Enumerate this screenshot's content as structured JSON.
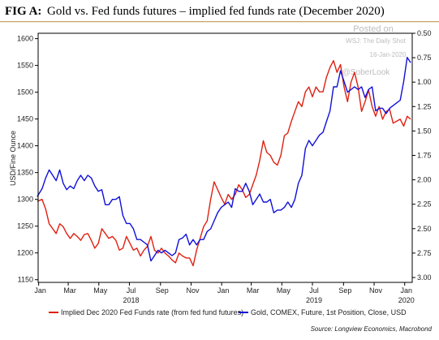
{
  "title": {
    "prefix": "FIG A:",
    "text": "Gold vs. Fed funds futures – implied fed funds rate (December 2020)"
  },
  "watermark": {
    "line1": "Posted on",
    "line2": "WSJ: The Daily Shot",
    "line3": "16-Jan-2020",
    "line4": "@SoberLook"
  },
  "source": "Source: Longview Economics, Macrobond",
  "colors": {
    "gold": "#1010d8",
    "fedfunds": "#e02010",
    "frame": "#000000"
  },
  "chart_data": {
    "type": "line",
    "ylabel": "USD/Fine Ounce",
    "x_tick_labels": [
      "Jan",
      "Mar",
      "May",
      "Jul",
      "Sep",
      "Nov",
      "Jan",
      "Mar",
      "May",
      "Jul",
      "Sep",
      "Nov",
      "Jan"
    ],
    "year_labels": [
      "2018",
      "2019",
      "2020"
    ],
    "y_left": {
      "lim": [
        1145,
        1610
      ],
      "ticks": [
        "1600",
        "1550",
        "1500",
        "1450",
        "1400",
        "1350",
        "1300",
        "1250",
        "1200",
        "1150"
      ]
    },
    "y_right": {
      "lim": [
        0.5,
        3.05
      ],
      "inverted": true,
      "ticks": [
        "0.50",
        "0.75",
        "1.00",
        "1.25",
        "1.50",
        "1.75",
        "2.00",
        "2.25",
        "2.50",
        "2.75",
        "3.00"
      ]
    },
    "series": [
      {
        "name": "Implied Dec 2020 Fed Funds rate (from fed fund futures)",
        "color": "#e02010",
        "axis": "right",
        "x": [
          "2017-12-29",
          "2018-01-08",
          "2018-01-15",
          "2018-01-22",
          "2018-01-29",
          "2018-02-05",
          "2018-02-12",
          "2018-02-19",
          "2018-02-26",
          "2018-03-05",
          "2018-03-12",
          "2018-03-19",
          "2018-03-26",
          "2018-04-02",
          "2018-04-09",
          "2018-04-16",
          "2018-04-23",
          "2018-04-30",
          "2018-05-07",
          "2018-05-14",
          "2018-05-21",
          "2018-05-28",
          "2018-06-04",
          "2018-06-11",
          "2018-06-18",
          "2018-06-25",
          "2018-07-02",
          "2018-07-09",
          "2018-07-16",
          "2018-07-23",
          "2018-07-30",
          "2018-08-06",
          "2018-08-13",
          "2018-08-20",
          "2018-08-27",
          "2018-09-03",
          "2018-09-10",
          "2018-09-17",
          "2018-09-24",
          "2018-10-01",
          "2018-10-08",
          "2018-10-15",
          "2018-10-22",
          "2018-10-29",
          "2018-11-05",
          "2018-11-12",
          "2018-11-19",
          "2018-11-26",
          "2018-12-03",
          "2018-12-10",
          "2018-12-17",
          "2018-12-24",
          "2018-12-31",
          "2019-01-07",
          "2019-01-14",
          "2019-01-21",
          "2019-01-28",
          "2019-02-04",
          "2019-02-11",
          "2019-02-18",
          "2019-02-25",
          "2019-03-04",
          "2019-03-11",
          "2019-03-18",
          "2019-03-25",
          "2019-04-01",
          "2019-04-08",
          "2019-04-15",
          "2019-04-22",
          "2019-04-29",
          "2019-05-06",
          "2019-05-13",
          "2019-05-20",
          "2019-05-27",
          "2019-06-03",
          "2019-06-10",
          "2019-06-17",
          "2019-06-24",
          "2019-07-01",
          "2019-07-08",
          "2019-07-15",
          "2019-07-22",
          "2019-07-29",
          "2019-08-05",
          "2019-08-12",
          "2019-08-19",
          "2019-08-26",
          "2019-09-02",
          "2019-09-09",
          "2019-09-16",
          "2019-09-23",
          "2019-09-30",
          "2019-10-07",
          "2019-10-14",
          "2019-10-21",
          "2019-10-28",
          "2019-11-04",
          "2019-11-11",
          "2019-11-18",
          "2019-11-25",
          "2019-12-02",
          "2019-12-09",
          "2019-12-16",
          "2019-12-23",
          "2019-12-30",
          "2020-01-06",
          "2020-01-13"
        ],
        "values": [
          2.22,
          2.2,
          2.3,
          2.45,
          2.5,
          2.55,
          2.45,
          2.48,
          2.55,
          2.6,
          2.55,
          2.58,
          2.62,
          2.56,
          2.55,
          2.62,
          2.7,
          2.65,
          2.5,
          2.55,
          2.6,
          2.58,
          2.62,
          2.72,
          2.7,
          2.58,
          2.65,
          2.72,
          2.7,
          2.78,
          2.72,
          2.68,
          2.58,
          2.72,
          2.75,
          2.7,
          2.75,
          2.78,
          2.82,
          2.85,
          2.75,
          2.78,
          2.8,
          2.8,
          2.88,
          2.72,
          2.6,
          2.48,
          2.42,
          2.2,
          2.02,
          2.1,
          2.18,
          2.25,
          2.15,
          2.2,
          2.15,
          2.05,
          2.1,
          2.18,
          2.15,
          2.05,
          1.95,
          1.8,
          1.6,
          1.72,
          1.75,
          1.82,
          1.85,
          1.75,
          1.55,
          1.52,
          1.4,
          1.3,
          1.2,
          1.25,
          1.1,
          1.05,
          1.15,
          1.05,
          1.1,
          1.1,
          0.95,
          0.85,
          0.78,
          0.9,
          0.82,
          1.05,
          1.2,
          1.0,
          0.9,
          1.05,
          1.3,
          1.2,
          1.08,
          1.25,
          1.35,
          1.25,
          1.38,
          1.3,
          1.28,
          1.42,
          1.4,
          1.38,
          1.45,
          1.35,
          1.38
        ]
      },
      {
        "name": "Gold, COMEX, Future, 1st Position, Close, USD",
        "color": "#1010d8",
        "axis": "left",
        "x": [
          "2017-12-29",
          "2018-01-08",
          "2018-01-15",
          "2018-01-22",
          "2018-01-29",
          "2018-02-05",
          "2018-02-12",
          "2018-02-19",
          "2018-02-26",
          "2018-03-05",
          "2018-03-12",
          "2018-03-19",
          "2018-03-26",
          "2018-04-02",
          "2018-04-09",
          "2018-04-16",
          "2018-04-23",
          "2018-04-30",
          "2018-05-07",
          "2018-05-14",
          "2018-05-21",
          "2018-05-28",
          "2018-06-04",
          "2018-06-11",
          "2018-06-18",
          "2018-06-25",
          "2018-07-02",
          "2018-07-09",
          "2018-07-16",
          "2018-07-23",
          "2018-07-30",
          "2018-08-06",
          "2018-08-13",
          "2018-08-20",
          "2018-08-27",
          "2018-09-03",
          "2018-09-10",
          "2018-09-17",
          "2018-09-24",
          "2018-10-01",
          "2018-10-08",
          "2018-10-15",
          "2018-10-22",
          "2018-10-29",
          "2018-11-05",
          "2018-11-12",
          "2018-11-19",
          "2018-11-26",
          "2018-12-03",
          "2018-12-10",
          "2018-12-17",
          "2018-12-24",
          "2018-12-31",
          "2019-01-07",
          "2019-01-14",
          "2019-01-21",
          "2019-01-28",
          "2019-02-04",
          "2019-02-11",
          "2019-02-18",
          "2019-02-25",
          "2019-03-04",
          "2019-03-11",
          "2019-03-18",
          "2019-03-25",
          "2019-04-01",
          "2019-04-08",
          "2019-04-15",
          "2019-04-22",
          "2019-04-29",
          "2019-05-06",
          "2019-05-13",
          "2019-05-20",
          "2019-05-27",
          "2019-06-03",
          "2019-06-10",
          "2019-06-17",
          "2019-06-24",
          "2019-07-01",
          "2019-07-08",
          "2019-07-15",
          "2019-07-22",
          "2019-07-29",
          "2019-08-05",
          "2019-08-12",
          "2019-08-19",
          "2019-08-26",
          "2019-09-02",
          "2019-09-09",
          "2019-09-16",
          "2019-09-23",
          "2019-09-30",
          "2019-10-07",
          "2019-10-14",
          "2019-10-21",
          "2019-10-28",
          "2019-11-04",
          "2019-11-11",
          "2019-11-18",
          "2019-11-25",
          "2019-12-02",
          "2019-12-09",
          "2019-12-16",
          "2019-12-23",
          "2019-12-30",
          "2020-01-06",
          "2020-01-13"
        ],
        "values": [
          1305,
          1320,
          1340,
          1355,
          1345,
          1335,
          1355,
          1330,
          1318,
          1325,
          1320,
          1335,
          1345,
          1335,
          1345,
          1340,
          1325,
          1315,
          1318,
          1290,
          1290,
          1300,
          1300,
          1305,
          1270,
          1255,
          1255,
          1245,
          1225,
          1225,
          1220,
          1215,
          1185,
          1195,
          1205,
          1200,
          1205,
          1200,
          1195,
          1200,
          1225,
          1228,
          1235,
          1215,
          1225,
          1215,
          1225,
          1225,
          1240,
          1245,
          1260,
          1275,
          1285,
          1290,
          1295,
          1285,
          1320,
          1315,
          1315,
          1330,
          1315,
          1290,
          1300,
          1310,
          1295,
          1295,
          1300,
          1275,
          1280,
          1280,
          1285,
          1295,
          1285,
          1300,
          1330,
          1345,
          1395,
          1410,
          1400,
          1410,
          1420,
          1425,
          1445,
          1465,
          1510,
          1510,
          1540,
          1520,
          1500,
          1505,
          1510,
          1505,
          1510,
          1490,
          1505,
          1510,
          1465,
          1470,
          1470,
          1460,
          1470,
          1475,
          1480,
          1485,
          1520,
          1565,
          1555
        ]
      }
    ]
  }
}
